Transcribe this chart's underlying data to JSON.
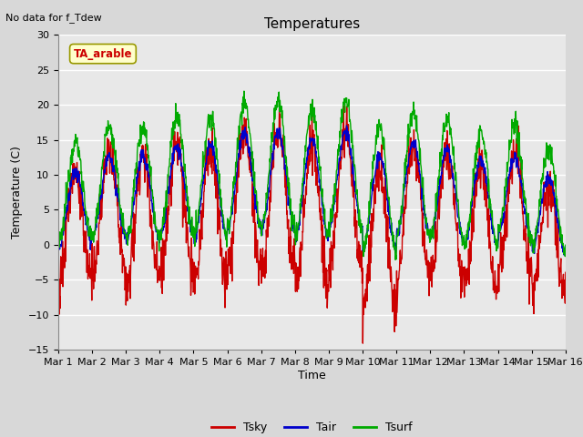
{
  "title": "Temperatures",
  "subtitle": "No data for f_Tdew",
  "xlabel": "Time",
  "ylabel": "Temperature (C)",
  "ylim": [
    -15,
    30
  ],
  "yticks": [
    -15,
    -10,
    -5,
    0,
    5,
    10,
    15,
    20,
    25,
    30
  ],
  "n_days": 15,
  "n_per_day": 96,
  "x_tick_labels": [
    "Mar 1",
    "Mar 2",
    "Mar 3",
    "Mar 4",
    "Mar 5",
    "Mar 6",
    "Mar 7",
    "Mar 8",
    "Mar 9",
    "Mar 10",
    "Mar 11",
    "Mar 12",
    "Mar 13",
    "Mar 14",
    "Mar 15",
    "Mar 16"
  ],
  "color_tsky": "#cc0000",
  "color_tair": "#0000cc",
  "color_tsurf": "#00aa00",
  "legend_labels": [
    "Tsky",
    "Tair",
    "Tsurf"
  ],
  "annotation_text": "TA_arable",
  "annotation_bbox_facecolor": "#ffffcc",
  "annotation_bbox_edgecolor": "#999900",
  "bg_color": "#d8d8d8",
  "plot_bg_color": "#e8e8e8",
  "title_fontsize": 11,
  "axis_label_fontsize": 9,
  "tick_fontsize": 8,
  "linewidth": 1.0
}
